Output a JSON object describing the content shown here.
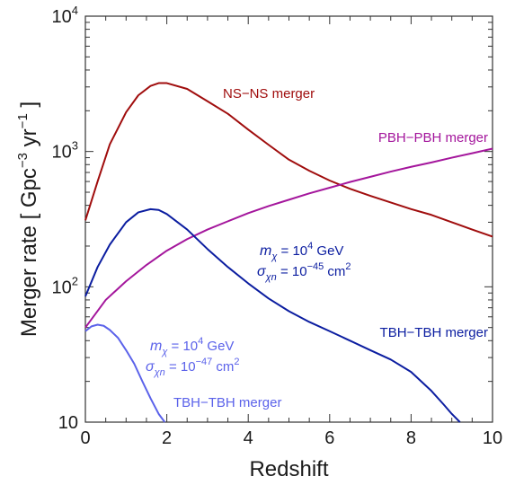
{
  "chart_data": {
    "type": "line",
    "xlabel": "Redshift",
    "ylabel": "Merger rate [ Gpc",
    "ylabel_sup1": "−3",
    "ylabel_mid": " yr",
    "ylabel_sup2": "−1",
    "ylabel_end": "]",
    "xlim": [
      0,
      10
    ],
    "ylim": [
      10,
      10000
    ],
    "yscale": "log",
    "grid": false,
    "x_ticks": [
      {
        "value": 0,
        "label": "0"
      },
      {
        "value": 2,
        "label": "2"
      },
      {
        "value": 4,
        "label": "4"
      },
      {
        "value": 6,
        "label": "6"
      },
      {
        "value": 8,
        "label": "8"
      },
      {
        "value": 10,
        "label": "10"
      }
    ],
    "y_ticks": [
      {
        "value": 10,
        "base": "10",
        "exp": ""
      },
      {
        "value": 100,
        "base": "10",
        "exp": "2"
      },
      {
        "value": 1000,
        "base": "10",
        "exp": "3"
      },
      {
        "value": 10000,
        "base": "10",
        "exp": "4"
      }
    ],
    "series": [
      {
        "name": "NS−NS merger",
        "color": "#a00d0d",
        "x": [
          0,
          0.3,
          0.6,
          1.0,
          1.3,
          1.6,
          1.8,
          2.0,
          2.5,
          3.0,
          3.5,
          4.0,
          4.5,
          5.0,
          5.5,
          6.0,
          6.5,
          7.0,
          7.5,
          8.0,
          8.5,
          9.0,
          9.5,
          10.0
        ],
        "y": [
          310,
          600,
          1130,
          1950,
          2600,
          3050,
          3200,
          3200,
          2900,
          2350,
          1900,
          1450,
          1120,
          870,
          720,
          610,
          530,
          470,
          420,
          375,
          340,
          300,
          265,
          235
        ]
      },
      {
        "name": "PBH−PBH merger",
        "color": "#a4169c",
        "x": [
          0,
          0.5,
          1.0,
          1.5,
          2.0,
          2.5,
          3.0,
          3.5,
          4.0,
          4.5,
          5.0,
          5.5,
          6.0,
          6.5,
          7.0,
          7.5,
          8.0,
          8.5,
          9.0,
          9.5,
          10.0
        ],
        "y": [
          50,
          80,
          110,
          145,
          185,
          225,
          265,
          305,
          350,
          395,
          440,
          490,
          540,
          595,
          650,
          710,
          770,
          830,
          900,
          970,
          1050
        ]
      },
      {
        "name": "TBH−TBH merger",
        "color": "#0b1da0",
        "x": [
          0,
          0.3,
          0.6,
          1.0,
          1.3,
          1.6,
          1.8,
          2.0,
          2.5,
          3.0,
          3.5,
          4.0,
          4.5,
          5.0,
          5.5,
          6.0,
          6.5,
          7.0,
          7.5,
          8.0,
          8.5,
          8.8,
          9.0,
          9.2
        ],
        "y": [
          85,
          140,
          205,
          300,
          355,
          375,
          370,
          345,
          265,
          190,
          140,
          106,
          82,
          66,
          55,
          47,
          40,
          34,
          29,
          23.5,
          17,
          13.5,
          11.5,
          10
        ]
      },
      {
        "name": "TBH−TBH merger",
        "color": "#5b62ea",
        "x": [
          0,
          0.15,
          0.3,
          0.45,
          0.6,
          0.8,
          1.0,
          1.2,
          1.4,
          1.6,
          1.8,
          1.95
        ],
        "y": [
          47,
          51,
          52.5,
          51.5,
          48,
          42,
          34,
          27,
          20,
          15,
          11.5,
          10
        ]
      }
    ],
    "annotations": {
      "ns": {
        "text": "NS−NS merger",
        "color": "#a00d0d"
      },
      "pbh": {
        "text": "PBH−PBH merger",
        "color": "#a4169c"
      },
      "tbh1_label": {
        "text": "TBH−TBH merger",
        "color": "#0b1da0"
      },
      "tbh1_m": {
        "sym": "m",
        "sub": "χ",
        "eq": " = 10",
        "sup": "4",
        "unit": " GeV",
        "color": "#0b1da0"
      },
      "tbh1_s": {
        "sym": "σ",
        "sub": "χn",
        "eq": " = 10",
        "sup": "−45",
        "unit": " cm",
        "sup2": "2",
        "color": "#0b1da0"
      },
      "tbh2_label": {
        "text": "TBH−TBH merger",
        "color": "#5b62ea"
      },
      "tbh2_m": {
        "sym": "m",
        "sub": "χ",
        "eq": " = 10",
        "sup": "4",
        "unit": " GeV",
        "color": "#5b62ea"
      },
      "tbh2_s": {
        "sym": "σ",
        "sub": "χn",
        "eq": " = 10",
        "sup": "−47",
        "unit": " cm",
        "sup2": "2",
        "color": "#5b62ea"
      }
    }
  }
}
